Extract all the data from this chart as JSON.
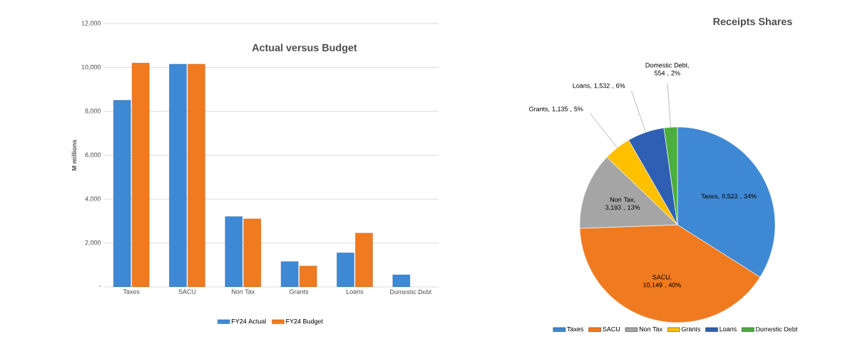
{
  "chart_data": [
    {
      "type": "bar",
      "title": "Actual versus Budget",
      "ylabel": "M millions",
      "categories": [
        "Taxes",
        "SACU",
        "Non Tax",
        "Grants",
        "Loans",
        "Domestic Debt"
      ],
      "series": [
        {
          "name": "FY24 Actual",
          "color": "#3f88d3",
          "values": [
            8500,
            10150,
            3200,
            1150,
            1550,
            550
          ]
        },
        {
          "name": "FY24 Budget",
          "color": "#f07a1f",
          "values": [
            10200,
            10150,
            3100,
            950,
            2450,
            null
          ]
        }
      ],
      "ylim": [
        0,
        12000
      ],
      "yticks": [
        {
          "value": 0,
          "label": "-"
        },
        {
          "value": 2000,
          "label": "2,000"
        },
        {
          "value": 4000,
          "label": "4,000"
        },
        {
          "value": 6000,
          "label": "6,000"
        },
        {
          "value": 8000,
          "label": "8,000"
        },
        {
          "value": 10000,
          "label": "10,000"
        },
        {
          "value": 12000,
          "label": "12,000"
        }
      ],
      "grid": "y",
      "legend": "bottom"
    },
    {
      "type": "pie",
      "title": "Receipts Shares",
      "categories": [
        "Taxes",
        "SACU",
        "Non Tax",
        "Grants",
        "Loans",
        "Domestic Debt"
      ],
      "values": [
        8523,
        10149,
        3193,
        1135,
        1532,
        554
      ],
      "colors": [
        "#3f88d3",
        "#f07a1f",
        "#a5a5a5",
        "#ffc000",
        "#2f5fb3",
        "#4caf3d"
      ],
      "value_labels": [
        "Taxes, 8,523 , 34%",
        "SACU, 10,149 , 40%",
        "Non Tax, 3,193 , 13%",
        "Grants, 1,135 , 5%",
        "Loans, 1,532 , 6%",
        "Domestic Debt, 554 , 2%"
      ],
      "legend": "bottom"
    }
  ]
}
